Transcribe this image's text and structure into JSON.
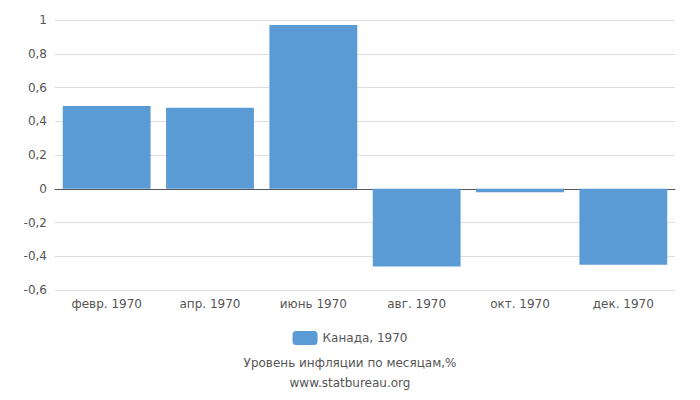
{
  "chart_data": {
    "type": "bar",
    "subtitle": "Уровень инфляции по месяцам,%",
    "source": "www.statbureau.org",
    "categories": [
      "февр. 1970",
      "апр. 1970",
      "июнь 1970",
      "авг. 1970",
      "окт. 1970",
      "дек. 1970"
    ],
    "series": [
      {
        "name": "Канада, 1970",
        "color": "#5b9bd5",
        "values": [
          0.49,
          0.48,
          0.97,
          -0.46,
          -0.02,
          -0.45
        ]
      }
    ],
    "ylim": [
      -0.6,
      1.0
    ],
    "yticks": [
      {
        "value": -0.6,
        "label": "-0,6"
      },
      {
        "value": -0.4,
        "label": "-0,4"
      },
      {
        "value": -0.2,
        "label": "-0,2"
      },
      0,
      {
        "value": 0.2,
        "label": "0,2"
      },
      {
        "value": 0.4,
        "label": "0,4"
      },
      {
        "value": 0.6,
        "label": "0,6"
      },
      {
        "value": 0.8,
        "label": "0,8"
      },
      1
    ],
    "grid": true,
    "legend": "bottom"
  }
}
